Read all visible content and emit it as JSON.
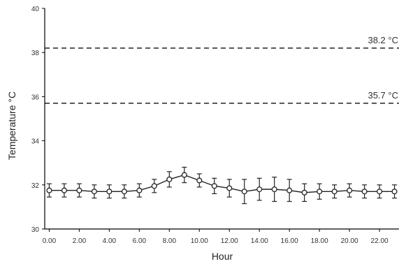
{
  "chart_data": {
    "type": "line",
    "title": "",
    "xlabel": "Hour",
    "ylabel": "Temperature °C",
    "xlim": [
      -0.3,
      23.3
    ],
    "ylim": [
      30,
      40
    ],
    "grid": false,
    "x_ticks": [
      0,
      2,
      4,
      6,
      8,
      10,
      12,
      14,
      16,
      18,
      20,
      22
    ],
    "x_tick_labels": [
      "0.00",
      "2.00",
      "4.00",
      "6.00",
      "8.00",
      "10.00",
      "12.00",
      "14.00",
      "16.00",
      "18.00",
      "20.00",
      "22.00"
    ],
    "y_ticks": [
      30,
      32,
      34,
      36,
      38,
      40
    ],
    "y_tick_labels": [
      "30",
      "32",
      "34",
      "36",
      "38",
      "40"
    ],
    "series": [
      {
        "x": [
          0,
          1,
          2,
          3,
          4,
          5,
          6,
          7,
          8,
          9,
          10,
          11,
          12,
          13,
          14,
          15,
          16,
          17,
          18,
          19,
          20,
          21,
          22,
          23
        ],
        "values": [
          31.75,
          31.75,
          31.75,
          31.7,
          31.7,
          31.7,
          31.75,
          31.95,
          32.25,
          32.45,
          32.2,
          31.95,
          31.85,
          31.7,
          31.8,
          31.8,
          31.75,
          31.65,
          31.7,
          31.7,
          31.75,
          31.7,
          31.7,
          31.7
        ],
        "error": [
          0.3,
          0.3,
          0.3,
          0.3,
          0.3,
          0.3,
          0.3,
          0.3,
          0.35,
          0.35,
          0.3,
          0.35,
          0.4,
          0.55,
          0.5,
          0.55,
          0.5,
          0.4,
          0.35,
          0.3,
          0.3,
          0.3,
          0.3,
          0.3
        ],
        "color": "#222222"
      }
    ],
    "reference_lines": [
      {
        "y": 38.2,
        "label": "38.2 °C"
      },
      {
        "y": 35.7,
        "label": "35.7 °C"
      }
    ]
  }
}
